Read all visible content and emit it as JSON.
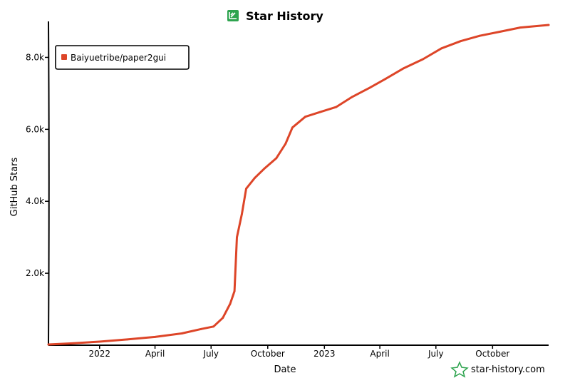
{
  "chart_data": {
    "type": "line",
    "title": "Star History",
    "xlabel": "Date",
    "ylabel": "GitHub Stars",
    "x_ticks": [
      "2022",
      "April",
      "July",
      "October",
      "2023",
      "April",
      "July",
      "October"
    ],
    "x_tick_dates": [
      "2022-01-01",
      "2022-04-01",
      "2022-07-01",
      "2022-10-01",
      "2023-01-01",
      "2023-04-01",
      "2023-07-01",
      "2023-10-01"
    ],
    "y_ticks": [
      "2.0k",
      "4.0k",
      "6.0k",
      "8.0k"
    ],
    "y_tick_values": [
      2000,
      4000,
      6000,
      8000
    ],
    "xlim": [
      "2021-10-10",
      "2023-12-31"
    ],
    "ylim": [
      0,
      9000
    ],
    "grid": false,
    "legend_position": "top-left",
    "series": [
      {
        "name": "Baiyuetribe/paper2gui",
        "color": "#dd4528",
        "points": [
          [
            "2021-10-10",
            20
          ],
          [
            "2021-11-15",
            50
          ],
          [
            "2022-01-01",
            100
          ],
          [
            "2022-02-15",
            160
          ],
          [
            "2022-04-01",
            230
          ],
          [
            "2022-05-15",
            330
          ],
          [
            "2022-06-15",
            450
          ],
          [
            "2022-07-05",
            520
          ],
          [
            "2022-07-20",
            760
          ],
          [
            "2022-08-01",
            1150
          ],
          [
            "2022-08-08",
            1500
          ],
          [
            "2022-08-12",
            3000
          ],
          [
            "2022-08-20",
            3650
          ],
          [
            "2022-08-27",
            4350
          ],
          [
            "2022-09-10",
            4650
          ],
          [
            "2022-09-25",
            4900
          ],
          [
            "2022-10-15",
            5200
          ],
          [
            "2022-10-30",
            5600
          ],
          [
            "2022-11-10",
            6050
          ],
          [
            "2022-12-01",
            6350
          ],
          [
            "2022-12-25",
            6480
          ],
          [
            "2023-01-20",
            6620
          ],
          [
            "2023-02-15",
            6900
          ],
          [
            "2023-03-15",
            7150
          ],
          [
            "2023-04-10",
            7400
          ],
          [
            "2023-05-10",
            7700
          ],
          [
            "2023-06-10",
            7950
          ],
          [
            "2023-07-10",
            8250
          ],
          [
            "2023-08-10",
            8450
          ],
          [
            "2023-09-10",
            8600
          ],
          [
            "2023-10-15",
            8720
          ],
          [
            "2023-11-15",
            8830
          ],
          [
            "2023-12-31",
            8900
          ]
        ]
      }
    ],
    "footer": "star-history.com"
  }
}
